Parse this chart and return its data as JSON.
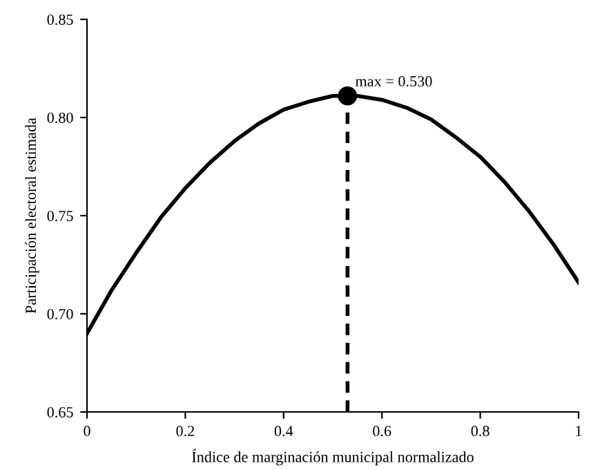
{
  "chart_data": {
    "type": "line",
    "xlabel": "Índice de marginación municipal normalizado",
    "ylabel": "Participación electoral estimada",
    "xlim": [
      0,
      1
    ],
    "ylim": [
      0.65,
      0.85
    ],
    "xticks": [
      0,
      0.2,
      0.4,
      0.6,
      0.8,
      1
    ],
    "yticks": [
      {
        "value": 0.65,
        "label": "0.65"
      },
      {
        "value": 0.7,
        "label": "0.70"
      },
      {
        "value": 0.75,
        "label": "0.75"
      },
      {
        "value": 0.8,
        "label": "0.80"
      },
      {
        "value": 0.85,
        "label": "0.85"
      }
    ],
    "grid": false,
    "legend": false,
    "series": [
      {
        "color": "#000000",
        "line_style": "solid",
        "marker": "none",
        "x": [
          0,
          0.05,
          0.1,
          0.15,
          0.2,
          0.25,
          0.3,
          0.35,
          0.4,
          0.45,
          0.5,
          0.53,
          0.55,
          0.6,
          0.65,
          0.7,
          0.75,
          0.8,
          0.85,
          0.9,
          0.95,
          1
        ],
        "values": [
          0.69,
          0.712,
          0.731,
          0.749,
          0.764,
          0.777,
          0.788,
          0.797,
          0.804,
          0.808,
          0.811,
          0.811,
          0.811,
          0.809,
          0.805,
          0.799,
          0.79,
          0.78,
          0.767,
          0.752,
          0.735,
          0.716
        ]
      },
      {
        "type": "line",
        "color": "#000000",
        "line_style": "dashed",
        "marker": "none",
        "x": [
          0.53,
          0.53
        ],
        "values": [
          0.65,
          0.811
        ]
      },
      {
        "type": "scatter",
        "color": "#000000",
        "marker": "circle",
        "x": [
          0.53
        ],
        "values": [
          0.811
        ]
      }
    ],
    "annotations": [
      {
        "text": "max = 0.530",
        "x": 0.53,
        "y": 0.811
      }
    ]
  }
}
